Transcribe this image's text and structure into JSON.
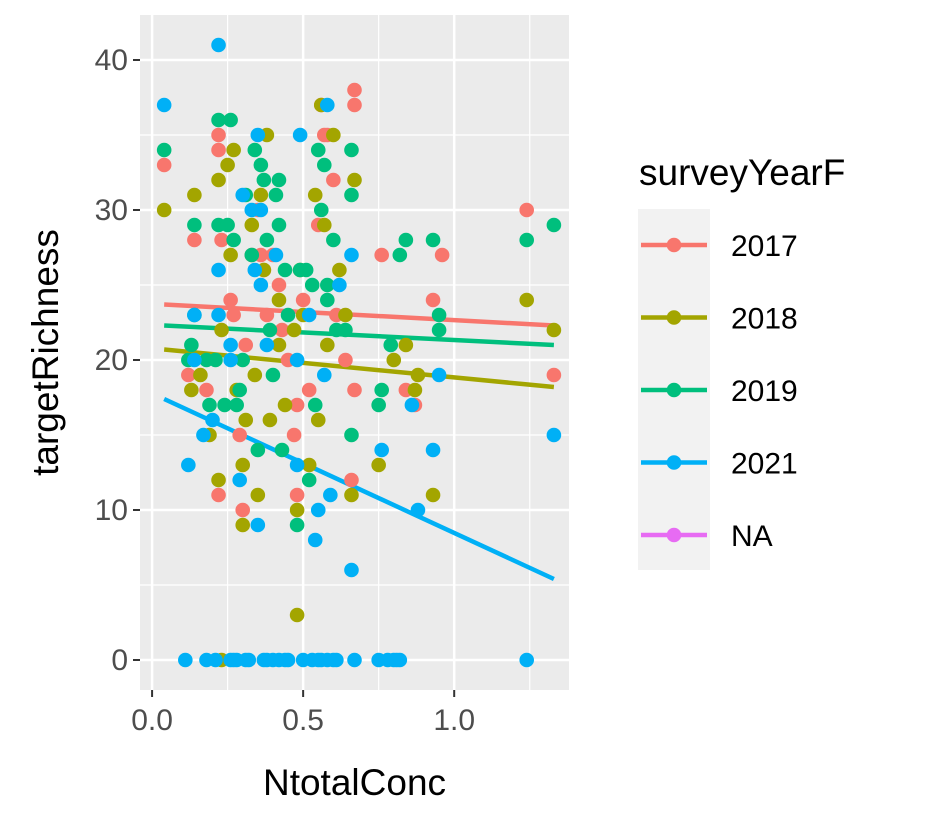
{
  "chart_data": {
    "type": "scatter",
    "title": "",
    "xlabel": "NtotalConc",
    "ylabel": "targetRichness",
    "xlim": [
      -0.04,
      1.38
    ],
    "ylim": [
      -2,
      43
    ],
    "x_ticks": [
      0.0,
      0.5,
      1.0
    ],
    "x_tick_labels": [
      "0.0",
      "0.5",
      "1.0"
    ],
    "y_ticks": [
      0,
      10,
      20,
      30,
      40
    ],
    "y_tick_labels": [
      "0",
      "10",
      "20",
      "30",
      "40"
    ],
    "grid": true,
    "panel_background": "#EBEBEB",
    "legend": {
      "title": "surveyYearF",
      "position": "right",
      "entries": [
        {
          "label": "2017",
          "color": "#F8766D"
        },
        {
          "label": "2018",
          "color": "#A3A500"
        },
        {
          "label": "2019",
          "color": "#00BF7D"
        },
        {
          "label": "2021",
          "color": "#00B0F6"
        },
        {
          "label": "NA",
          "color": "#E76BF3"
        }
      ]
    },
    "series": [
      {
        "name": "2017",
        "color": "#F8766D",
        "trend": [
          [
            0.04,
            23.7
          ],
          [
            1.33,
            22.3
          ]
        ],
        "points": [
          [
            0.04,
            33
          ],
          [
            0.14,
            28
          ],
          [
            0.22,
            35
          ],
          [
            0.22,
            34
          ],
          [
            0.23,
            28
          ],
          [
            0.22,
            11
          ],
          [
            0.26,
            24
          ],
          [
            0.27,
            23
          ],
          [
            0.29,
            15
          ],
          [
            0.3,
            10
          ],
          [
            0.31,
            21
          ],
          [
            0.33,
            27
          ],
          [
            0.35,
            30
          ],
          [
            0.36,
            27
          ],
          [
            0.37,
            26
          ],
          [
            0.38,
            23
          ],
          [
            0.4,
            27
          ],
          [
            0.42,
            25
          ],
          [
            0.43,
            22
          ],
          [
            0.45,
            20
          ],
          [
            0.47,
            15
          ],
          [
            0.48,
            11
          ],
          [
            0.48,
            17
          ],
          [
            0.5,
            24
          ],
          [
            0.52,
            18
          ],
          [
            0.55,
            29
          ],
          [
            0.56,
            37
          ],
          [
            0.57,
            35
          ],
          [
            0.58,
            35
          ],
          [
            0.6,
            32
          ],
          [
            0.61,
            23
          ],
          [
            0.64,
            20
          ],
          [
            0.66,
            12
          ],
          [
            0.67,
            38
          ],
          [
            0.67,
            37
          ],
          [
            0.67,
            18
          ],
          [
            0.76,
            27
          ],
          [
            0.84,
            18
          ],
          [
            0.87,
            17
          ],
          [
            0.93,
            24
          ],
          [
            0.96,
            27
          ],
          [
            1.24,
            30
          ],
          [
            1.33,
            19
          ],
          [
            0.12,
            19
          ],
          [
            0.18,
            18
          ]
        ]
      },
      {
        "name": "2018",
        "color": "#A3A500",
        "trend": [
          [
            0.04,
            20.7
          ],
          [
            1.33,
            18.2
          ]
        ],
        "points": [
          [
            0.04,
            30
          ],
          [
            0.13,
            18
          ],
          [
            0.14,
            31
          ],
          [
            0.16,
            19
          ],
          [
            0.19,
            15
          ],
          [
            0.22,
            12
          ],
          [
            0.22,
            32
          ],
          [
            0.23,
            22
          ],
          [
            0.23,
            0
          ],
          [
            0.25,
            33
          ],
          [
            0.26,
            27
          ],
          [
            0.27,
            34
          ],
          [
            0.28,
            18
          ],
          [
            0.3,
            13
          ],
          [
            0.3,
            9
          ],
          [
            0.31,
            16
          ],
          [
            0.33,
            29
          ],
          [
            0.34,
            19
          ],
          [
            0.35,
            11
          ],
          [
            0.36,
            31
          ],
          [
            0.37,
            26
          ],
          [
            0.38,
            35
          ],
          [
            0.39,
            16
          ],
          [
            0.42,
            24
          ],
          [
            0.42,
            21
          ],
          [
            0.44,
            17
          ],
          [
            0.47,
            22
          ],
          [
            0.48,
            10
          ],
          [
            0.48,
            3
          ],
          [
            0.49,
            26
          ],
          [
            0.5,
            23
          ],
          [
            0.52,
            13
          ],
          [
            0.54,
            31
          ],
          [
            0.55,
            16
          ],
          [
            0.56,
            37
          ],
          [
            0.57,
            29
          ],
          [
            0.58,
            21
          ],
          [
            0.6,
            35
          ],
          [
            0.62,
            26
          ],
          [
            0.64,
            23
          ],
          [
            0.66,
            11
          ],
          [
            0.67,
            32
          ],
          [
            0.75,
            13
          ],
          [
            0.8,
            20
          ],
          [
            0.84,
            21
          ],
          [
            0.87,
            18
          ],
          [
            0.88,
            19
          ],
          [
            0.93,
            11
          ],
          [
            1.24,
            24
          ],
          [
            1.33,
            22
          ]
        ]
      },
      {
        "name": "2019",
        "color": "#00BF7D",
        "trend": [
          [
            0.04,
            22.3
          ],
          [
            1.33,
            21.0
          ]
        ],
        "points": [
          [
            0.04,
            34
          ],
          [
            0.12,
            20
          ],
          [
            0.13,
            21
          ],
          [
            0.14,
            23
          ],
          [
            0.14,
            29
          ],
          [
            0.18,
            20
          ],
          [
            0.19,
            17
          ],
          [
            0.21,
            20
          ],
          [
            0.22,
            29
          ],
          [
            0.22,
            36
          ],
          [
            0.24,
            17
          ],
          [
            0.25,
            29
          ],
          [
            0.26,
            36
          ],
          [
            0.27,
            28
          ],
          [
            0.28,
            17
          ],
          [
            0.29,
            18
          ],
          [
            0.3,
            20
          ],
          [
            0.31,
            31
          ],
          [
            0.33,
            27
          ],
          [
            0.34,
            34
          ],
          [
            0.35,
            14
          ],
          [
            0.36,
            33
          ],
          [
            0.37,
            32
          ],
          [
            0.38,
            28
          ],
          [
            0.39,
            22
          ],
          [
            0.4,
            19
          ],
          [
            0.41,
            31
          ],
          [
            0.42,
            32
          ],
          [
            0.42,
            29
          ],
          [
            0.43,
            14
          ],
          [
            0.44,
            26
          ],
          [
            0.45,
            23
          ],
          [
            0.48,
            9
          ],
          [
            0.49,
            26
          ],
          [
            0.51,
            26
          ],
          [
            0.52,
            12
          ],
          [
            0.53,
            25
          ],
          [
            0.54,
            17
          ],
          [
            0.55,
            34
          ],
          [
            0.56,
            30
          ],
          [
            0.57,
            33
          ],
          [
            0.58,
            25
          ],
          [
            0.58,
            24
          ],
          [
            0.6,
            28
          ],
          [
            0.61,
            22
          ],
          [
            0.64,
            22
          ],
          [
            0.66,
            34
          ],
          [
            0.66,
            31
          ],
          [
            0.66,
            15
          ],
          [
            0.75,
            17
          ],
          [
            0.76,
            18
          ],
          [
            0.79,
            21
          ],
          [
            0.82,
            27
          ],
          [
            0.84,
            28
          ],
          [
            0.93,
            28
          ],
          [
            0.95,
            23
          ],
          [
            0.95,
            22
          ],
          [
            1.24,
            28
          ],
          [
            1.33,
            29
          ]
        ]
      },
      {
        "name": "2021",
        "color": "#00B0F6",
        "trend": [
          [
            0.04,
            17.4
          ],
          [
            1.33,
            5.4
          ]
        ],
        "points": [
          [
            0.04,
            37
          ],
          [
            0.11,
            0
          ],
          [
            0.12,
            13
          ],
          [
            0.14,
            20
          ],
          [
            0.14,
            23
          ],
          [
            0.17,
            15
          ],
          [
            0.18,
            0
          ],
          [
            0.2,
            16
          ],
          [
            0.21,
            0
          ],
          [
            0.22,
            41
          ],
          [
            0.22,
            26
          ],
          [
            0.22,
            23
          ],
          [
            0.26,
            21
          ],
          [
            0.26,
            20
          ],
          [
            0.26,
            0
          ],
          [
            0.27,
            0
          ],
          [
            0.28,
            0
          ],
          [
            0.29,
            12
          ],
          [
            0.3,
            31
          ],
          [
            0.31,
            0
          ],
          [
            0.32,
            0
          ],
          [
            0.33,
            30
          ],
          [
            0.34,
            26
          ],
          [
            0.35,
            9
          ],
          [
            0.35,
            35
          ],
          [
            0.36,
            25
          ],
          [
            0.36,
            30
          ],
          [
            0.37,
            0
          ],
          [
            0.38,
            21
          ],
          [
            0.38,
            0
          ],
          [
            0.4,
            0
          ],
          [
            0.41,
            27
          ],
          [
            0.42,
            0
          ],
          [
            0.44,
            0
          ],
          [
            0.45,
            0
          ],
          [
            0.48,
            13
          ],
          [
            0.48,
            20
          ],
          [
            0.49,
            35
          ],
          [
            0.5,
            0
          ],
          [
            0.52,
            23
          ],
          [
            0.53,
            0
          ],
          [
            0.54,
            8
          ],
          [
            0.55,
            10
          ],
          [
            0.55,
            0
          ],
          [
            0.56,
            0
          ],
          [
            0.57,
            19
          ],
          [
            0.58,
            37
          ],
          [
            0.58,
            0
          ],
          [
            0.59,
            11
          ],
          [
            0.6,
            0
          ],
          [
            0.61,
            0
          ],
          [
            0.62,
            25
          ],
          [
            0.66,
            27
          ],
          [
            0.66,
            6
          ],
          [
            0.67,
            0
          ],
          [
            0.75,
            0
          ],
          [
            0.76,
            14
          ],
          [
            0.78,
            0
          ],
          [
            0.8,
            0
          ],
          [
            0.81,
            0
          ],
          [
            0.82,
            0
          ],
          [
            0.86,
            17
          ],
          [
            0.88,
            10
          ],
          [
            0.93,
            14
          ],
          [
            0.95,
            19
          ],
          [
            1.24,
            0
          ],
          [
            1.33,
            15
          ]
        ]
      }
    ]
  }
}
